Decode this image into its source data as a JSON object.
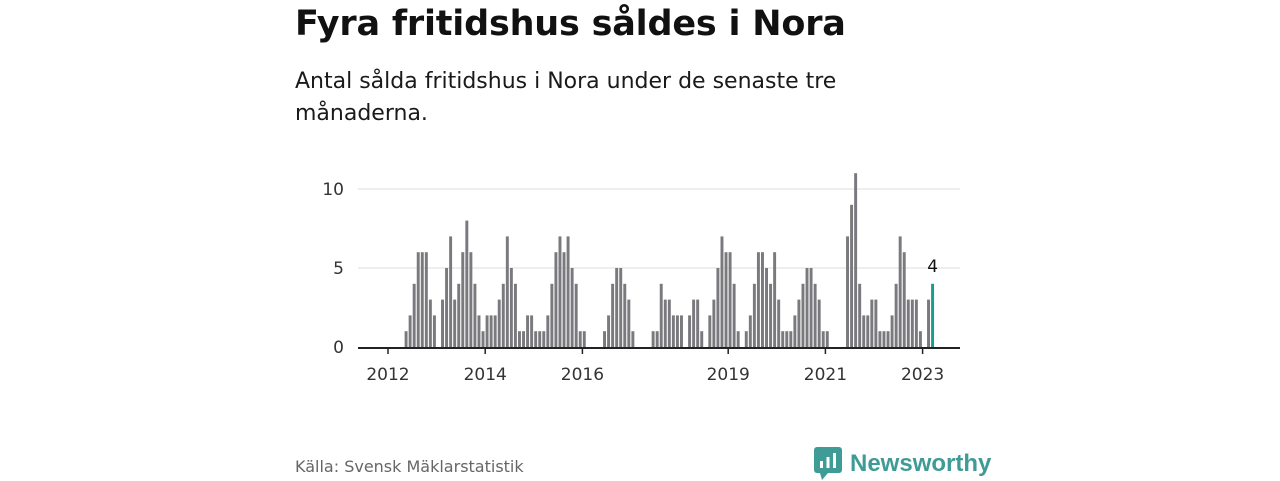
{
  "title": "Fyra fritidshus såldes i Nora",
  "subtitle": "Antal sålda fritidshus i Nora under de senaste tre månaderna.",
  "source": "Källa: Svensk Mäklarstatistik",
  "brand": "Newsworthy",
  "colors": {
    "bar": "#7a7a7e",
    "highlight": "#1a9c8f",
    "grid": "#dddddd",
    "axis": "#222222",
    "brand": "#3f9b95"
  },
  "chart_data": {
    "type": "bar",
    "start": "2012-01",
    "values": [
      0,
      0,
      0,
      0,
      1,
      2,
      4,
      6,
      6,
      6,
      3,
      2,
      0,
      3,
      5,
      7,
      3,
      4,
      6,
      8,
      6,
      4,
      2,
      1,
      2,
      2,
      2,
      3,
      4,
      7,
      5,
      4,
      1,
      1,
      2,
      2,
      1,
      1,
      1,
      2,
      4,
      6,
      7,
      6,
      7,
      5,
      4,
      1,
      1,
      0,
      0,
      0,
      0,
      1,
      2,
      4,
      5,
      5,
      4,
      3,
      1,
      0,
      0,
      0,
      0,
      1,
      1,
      4,
      3,
      3,
      2,
      2,
      2,
      0,
      2,
      3,
      3,
      1,
      0,
      2,
      3,
      5,
      7,
      6,
      6,
      4,
      1,
      0,
      1,
      2,
      4,
      6,
      6,
      5,
      4,
      6,
      3,
      1,
      1,
      1,
      2,
      3,
      4,
      5,
      5,
      4,
      3,
      1,
      1,
      0,
      0,
      0,
      0,
      7,
      9,
      11,
      4,
      2,
      2,
      3,
      3,
      1,
      1,
      1,
      2,
      4,
      7,
      6,
      3,
      3,
      3,
      1,
      0,
      3,
      4
    ],
    "highlight": {
      "index": 134,
      "label": "4"
    },
    "y_ticks": [
      "0",
      "5",
      "10"
    ],
    "ylim": [
      0,
      12
    ],
    "x_ticks": [
      "2012",
      "2014",
      "2016",
      "2019",
      "2021",
      "2023"
    ],
    "grid": true
  }
}
